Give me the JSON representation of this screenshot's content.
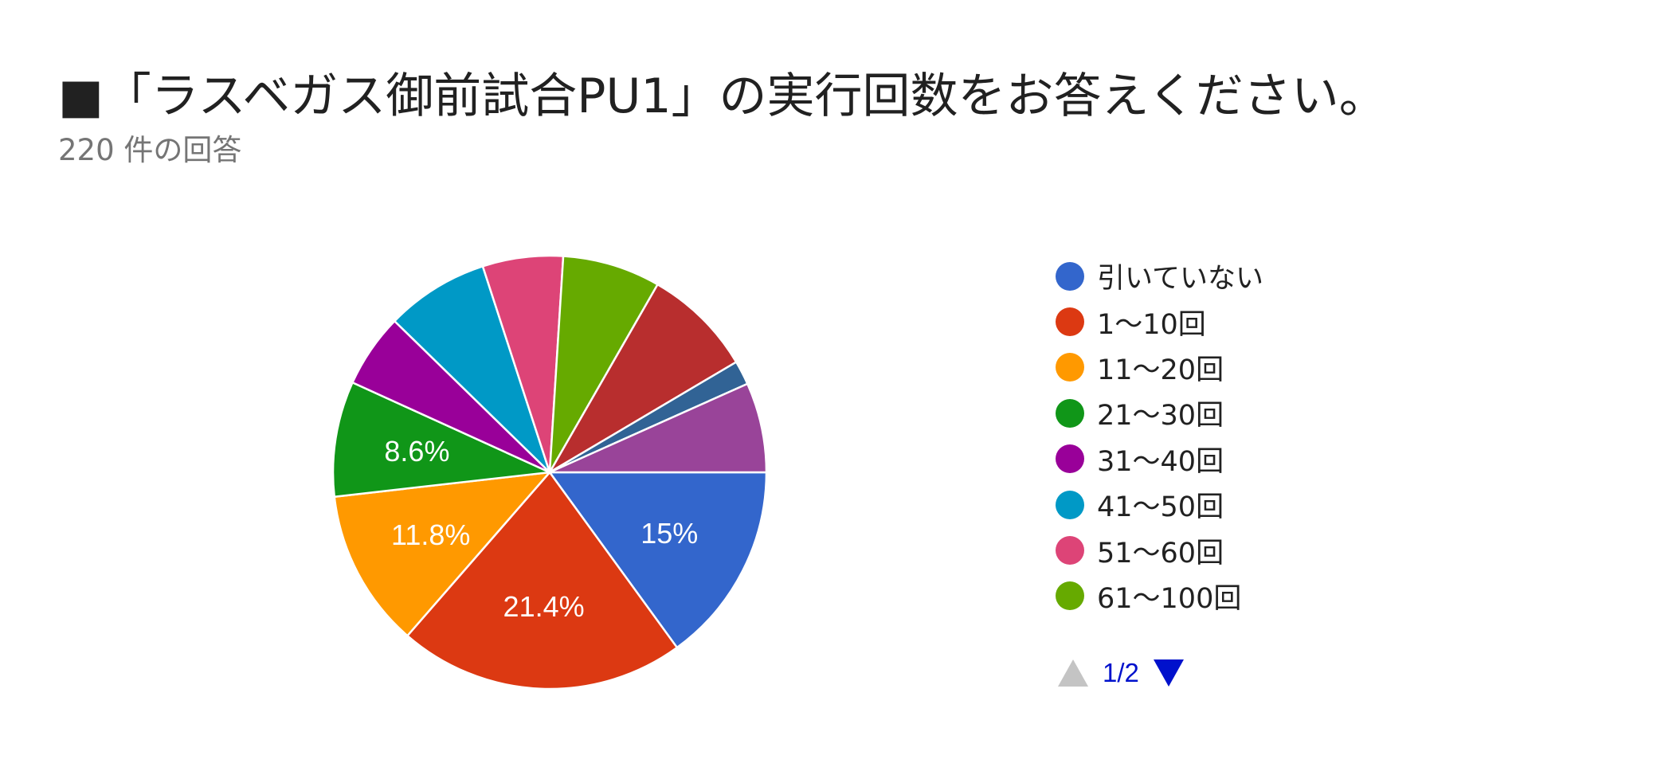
{
  "title": "■「ラスベガス御前試合PU1」の実行回数をお答えください。",
  "subtitle": "220 件の回答",
  "pager": {
    "text": "1/2"
  },
  "icons": {
    "prev": "triangle-up-icon",
    "next": "triangle-down-icon"
  },
  "chart_data": {
    "type": "pie",
    "total_responses": 220,
    "slices": [
      {
        "label": "引いていない",
        "value": 15.0,
        "display": "15%",
        "color": "#3366cc"
      },
      {
        "label": "1〜10回",
        "value": 21.4,
        "display": "21.4%",
        "color": "#dc3912"
      },
      {
        "label": "11〜20回",
        "value": 11.8,
        "display": "11.8%",
        "color": "#ff9900"
      },
      {
        "label": "21〜30回",
        "value": 8.6,
        "display": "8.6%",
        "color": "#109618"
      },
      {
        "label": "31〜40回",
        "value": 5.5,
        "display": "",
        "color": "#990099"
      },
      {
        "label": "41〜50回",
        "value": 7.7,
        "display": "",
        "color": "#0099c6"
      },
      {
        "label": "51〜60回",
        "value": 6.0,
        "display": "",
        "color": "#dd4477"
      },
      {
        "label": "61〜100回",
        "value": 7.3,
        "display": "",
        "color": "#66aa00"
      },
      {
        "label": "",
        "value": 8.2,
        "display": "",
        "color": "#b82e2e"
      },
      {
        "label": "",
        "value": 1.8,
        "display": "",
        "color": "#316395"
      },
      {
        "label": "",
        "value": 6.7,
        "display": "",
        "color": "#994499"
      }
    ],
    "legend_visible_count": 8,
    "legend_position": "right"
  }
}
